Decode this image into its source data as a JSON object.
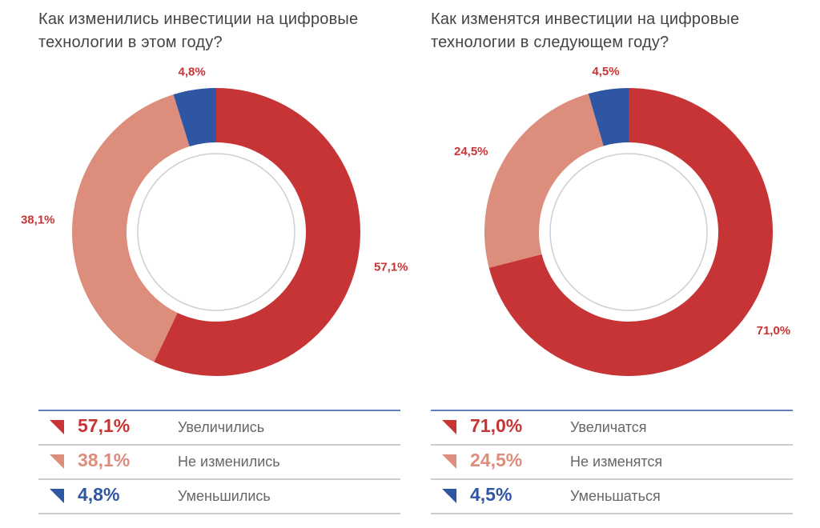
{
  "chart_data": [
    {
      "type": "pie",
      "title": "Как изменились инвестиции на цифровые технологии в этом году?",
      "categories": [
        "Увеличились",
        "Не изменились",
        "Уменьшились"
      ],
      "values": [
        57.1,
        38.1,
        4.8
      ],
      "value_labels": [
        "57,1%",
        "38,1%",
        "4,8%"
      ],
      "colors": [
        "#c73435",
        "#dc8d7b",
        "#2f56a3"
      ]
    },
    {
      "type": "pie",
      "title": "Как изменятся инвестиции на цифровые технологии в следующем году?",
      "categories": [
        "Увеличатся",
        "Не изменятся",
        "Уменьшаться"
      ],
      "values": [
        71.0,
        24.5,
        4.5
      ],
      "value_labels": [
        "71,0%",
        "24,5%",
        "4,5%"
      ],
      "colors": [
        "#c73435",
        "#dc8d7b",
        "#2f56a3"
      ]
    }
  ]
}
